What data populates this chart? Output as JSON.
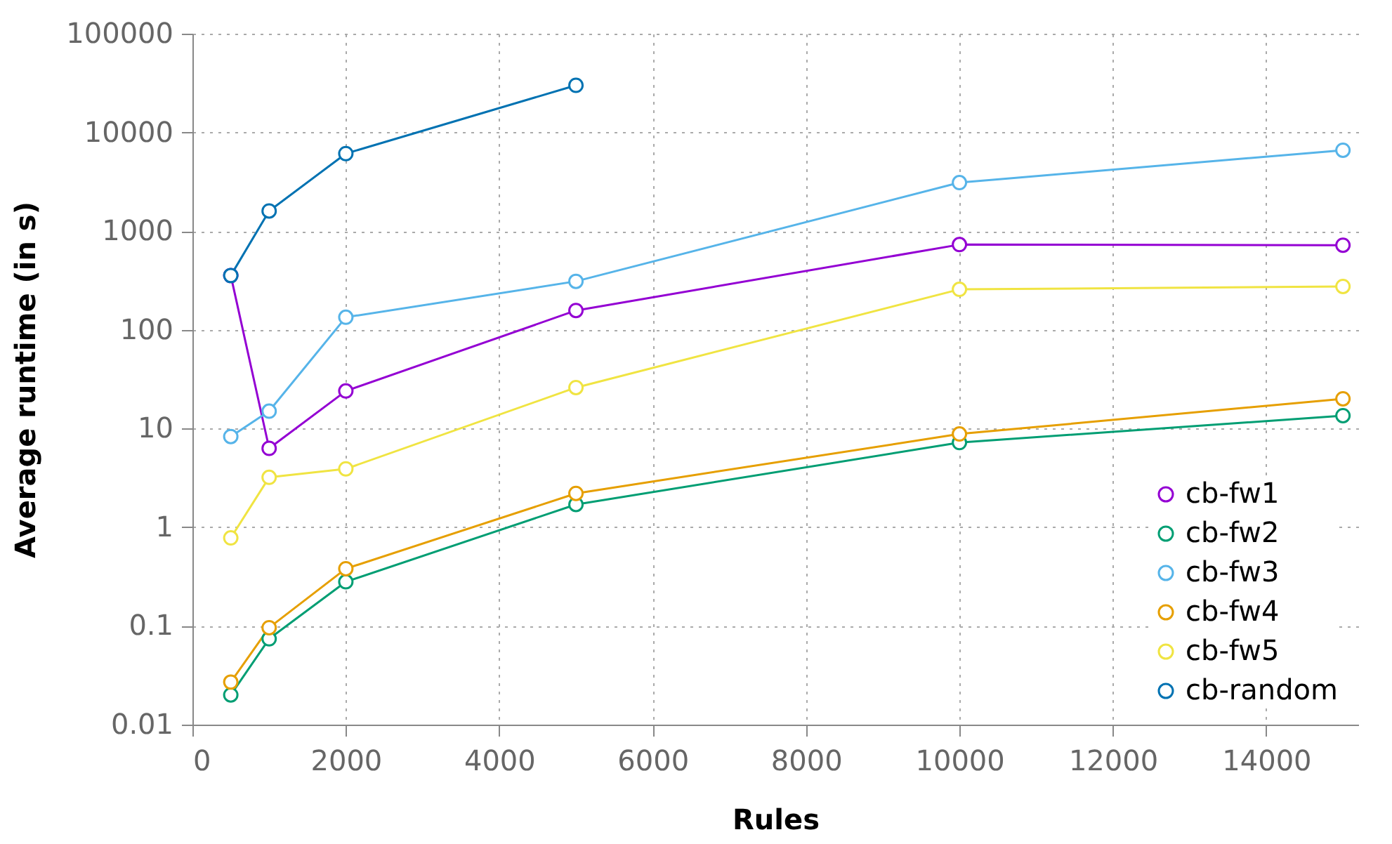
{
  "chart_data": {
    "type": "line",
    "xlabel": "Rules",
    "ylabel": "Average runtime (in s)",
    "log": "y",
    "grid": true,
    "legend": "bottom right",
    "marker": "circle",
    "line_style": "solid",
    "x": [
      500,
      1000,
      2000,
      5000,
      10000,
      15000
    ],
    "xlim": [
      0,
      15200
    ],
    "xticks": [
      0,
      2000,
      4000,
      6000,
      8000,
      10000,
      12000,
      14000
    ],
    "ylim": [
      0.01,
      100000
    ],
    "yticks": [
      0.01,
      0.1,
      1,
      10,
      100,
      1000,
      10000,
      100000
    ],
    "series": [
      {
        "name": "cb-fw1",
        "color": "#9400d3",
        "values": [
          355,
          6.3,
          24,
          157,
          730,
          720
        ]
      },
      {
        "name": "cb-fw2",
        "color": "#009e73",
        "values": [
          0.02,
          0.074,
          0.28,
          1.7,
          7.2,
          13.5
        ]
      },
      {
        "name": "cb-fw3",
        "color": "#56b4e9",
        "values": [
          8.3,
          15,
          134,
          310,
          3100,
          6600
        ]
      },
      {
        "name": "cb-fw4",
        "color": "#e69f00",
        "values": [
          0.027,
          0.096,
          0.38,
          2.2,
          8.8,
          20
        ]
      },
      {
        "name": "cb-fw5",
        "color": "#f0e442",
        "values": [
          0.78,
          3.2,
          3.9,
          26,
          257,
          275
        ]
      },
      {
        "name": "cb-random",
        "color": "#0072b2",
        "x": [
          500,
          1000,
          2000,
          5000
        ],
        "values": [
          355,
          1600,
          6100,
          30000
        ]
      }
    ]
  }
}
